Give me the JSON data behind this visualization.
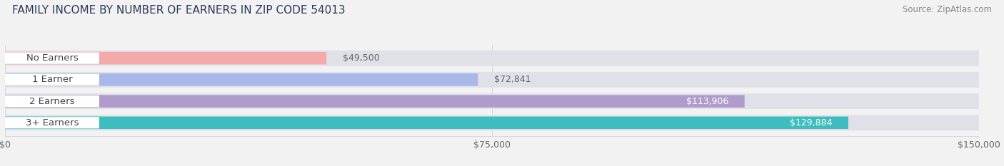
{
  "title": "FAMILY INCOME BY NUMBER OF EARNERS IN ZIP CODE 54013",
  "source": "Source: ZipAtlas.com",
  "categories": [
    "No Earners",
    "1 Earner",
    "2 Earners",
    "3+ Earners"
  ],
  "values": [
    49500,
    72841,
    113906,
    129884
  ],
  "bar_colors": [
    "#f2aaaa",
    "#a8b8e8",
    "#b09ccc",
    "#3dbdbd"
  ],
  "value_labels": [
    "$49,500",
    "$72,841",
    "$113,906",
    "$129,884"
  ],
  "xmax": 150000,
  "xticks": [
    0,
    75000,
    150000
  ],
  "xticklabels": [
    "$0",
    "$75,000",
    "$150,000"
  ],
  "bg_color": "#f2f2f2",
  "bar_bg_color": "#e0e0e8",
  "label_bg_color": "#ffffff",
  "label_text_color": "#444444",
  "label_color_inside": "#ffffff",
  "label_color_outside": "#666666",
  "title_color": "#2a3a5a",
  "source_color": "#888888",
  "title_fontsize": 11,
  "source_fontsize": 8.5,
  "tick_fontsize": 9,
  "value_fontsize": 9,
  "cat_fontsize": 9.5
}
